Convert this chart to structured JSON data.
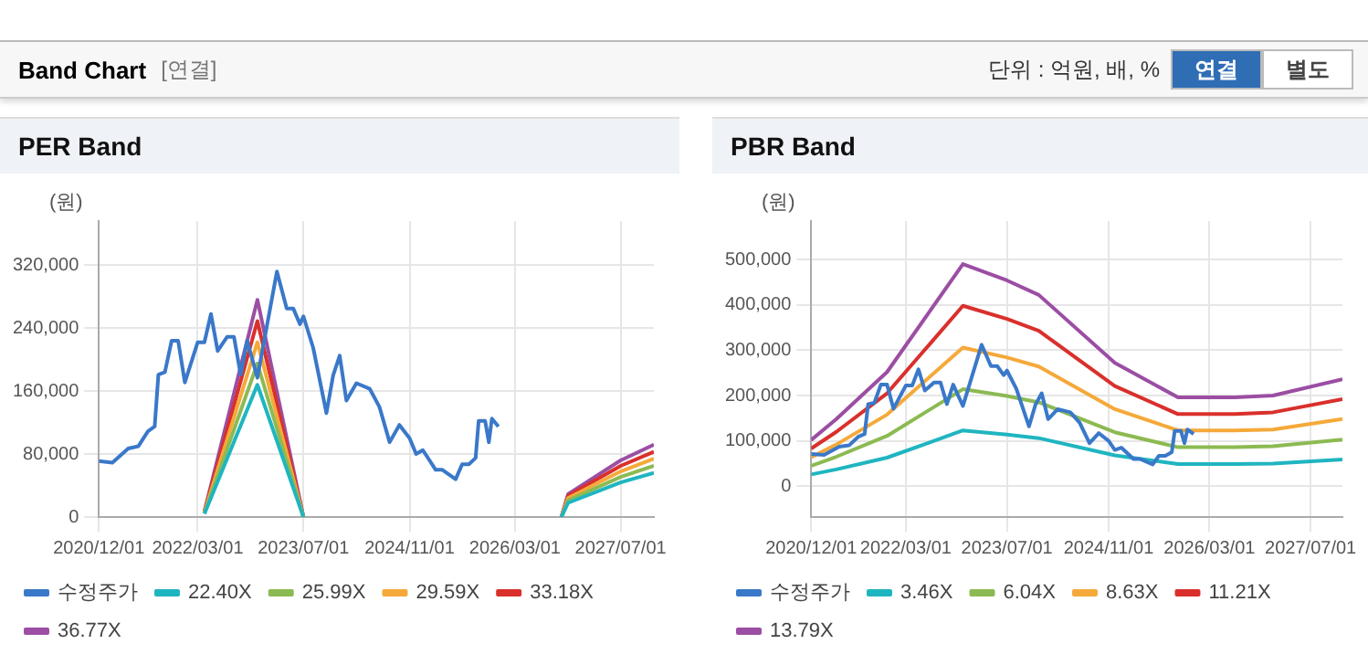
{
  "chart_data": [
    {
      "type": "other",
      "title": "Band Chart",
      "annotations": [
        "[연결]",
        "단위 : 억원, 배, %",
        "연결",
        "별도"
      ]
    },
    {
      "type": "line",
      "title": "PER Band",
      "ylabel": "(원)",
      "grid": true,
      "legend": "bottom",
      "marker": "none",
      "line_style": "solid",
      "xlim": [
        "2020-12-01",
        "2027-12-01"
      ],
      "xticks": [
        {
          "value": "2020-12-01",
          "label": "2020/12/01"
        },
        {
          "value": "2022-03-01",
          "label": "2022/03/01"
        },
        {
          "value": "2023-07-01",
          "label": "2023/07/01"
        },
        {
          "value": "2024-11-01",
          "label": "2024/11/01"
        },
        {
          "value": "2026-03-01",
          "label": "2026/03/01"
        },
        {
          "value": "2027-07-01",
          "label": "2027/07/01"
        }
      ],
      "ylim": [
        0,
        376000
      ],
      "yticks": [
        0,
        {
          "value": 80000,
          "label": "80,000"
        },
        {
          "value": 160000,
          "label": "160,000"
        },
        {
          "value": 240000,
          "label": "240,000"
        },
        {
          "value": 320000,
          "label": "320,000"
        }
      ],
      "series": [
        {
          "name": "수정주가",
          "color": "#3a78c9",
          "x": [
            "2020-12-01",
            "2021-02-01",
            "2021-04-15",
            "2021-06-01",
            "2021-07-15",
            "2021-08-15",
            "2021-09-01",
            "2021-10-01",
            "2021-11-01",
            "2021-12-01",
            "2022-01-01",
            "2022-03-01",
            "2022-04-01",
            "2022-05-01",
            "2022-06-01",
            "2022-07-15",
            "2022-08-15",
            "2022-09-15",
            "2022-10-15",
            "2022-12-01",
            "2023-03-01",
            "2023-04-15",
            "2023-05-15",
            "2023-06-15",
            "2023-07-01",
            "2023-08-15",
            "2023-10-15",
            "2023-11-15",
            "2023-12-15",
            "2024-01-15",
            "2024-03-01",
            "2024-05-01",
            "2024-06-15",
            "2024-08-01",
            "2024-09-15",
            "2024-11-01",
            "2024-12-01",
            "2025-01-01",
            "2025-03-01",
            "2025-04-01",
            "2025-06-01",
            "2025-07-01",
            "2025-08-01",
            "2025-09-01",
            "2025-09-15",
            "2025-10-15",
            "2025-11-01",
            "2025-11-15",
            "2025-12-15"
          ],
          "values": [
            71000,
            69000,
            87000,
            90000,
            109000,
            115000,
            181000,
            184000,
            224000,
            224000,
            171000,
            222000,
            222000,
            258000,
            211000,
            229000,
            229000,
            181000,
            224000,
            177000,
            312000,
            265000,
            265000,
            245000,
            255000,
            215000,
            132000,
            180000,
            205000,
            148000,
            170000,
            163000,
            140000,
            95000,
            117000,
            100000,
            80000,
            85000,
            60000,
            60000,
            48000,
            67000,
            67000,
            75000,
            122000,
            122000,
            95000,
            125000,
            115000
          ]
        },
        {
          "name": "22.40X",
          "color": "#1fb5c0",
          "x": [
            "2022-04-01",
            "2022-12-01",
            "2023-07-01",
            "2025-01-01",
            "2026-10-01",
            "2026-11-01",
            "2027-07-01",
            "2027-12-01"
          ],
          "values": [
            4000,
            168000,
            0,
            null,
            0,
            18000,
            44000,
            56000
          ]
        },
        {
          "name": "25.99X",
          "color": "#8cba52",
          "x": [
            "2022-04-01",
            "2022-12-01",
            "2023-07-01",
            "2025-01-01",
            "2026-10-01",
            "2026-11-01",
            "2027-07-01",
            "2027-12-01"
          ],
          "values": [
            5000,
            195000,
            0,
            null,
            0,
            21000,
            51000,
            65000
          ]
        },
        {
          "name": "29.59X",
          "color": "#f5a93a",
          "x": [
            "2022-04-01",
            "2022-12-01",
            "2023-07-01",
            "2025-01-01",
            "2026-10-01",
            "2026-11-01",
            "2027-07-01",
            "2027-12-01"
          ],
          "values": [
            6000,
            222000,
            0,
            null,
            0,
            24000,
            58000,
            74000
          ]
        },
        {
          "name": "33.18X",
          "color": "#d9302c",
          "x": [
            "2022-04-01",
            "2022-12-01",
            "2023-07-01",
            "2025-01-01",
            "2026-10-01",
            "2026-11-01",
            "2027-07-01",
            "2027-12-01"
          ],
          "values": [
            7000,
            249000,
            0,
            null,
            0,
            27000,
            65000,
            83000
          ]
        },
        {
          "name": "36.77X",
          "color": "#9b4ea3",
          "x": [
            "2022-04-01",
            "2022-12-01",
            "2023-07-01",
            "2025-01-01",
            "2026-10-01",
            "2026-11-01",
            "2027-07-01",
            "2027-12-01"
          ],
          "values": [
            7000,
            276000,
            0,
            null,
            0,
            29000,
            72000,
            92000
          ]
        }
      ]
    },
    {
      "type": "line",
      "title": "PBR Band",
      "ylabel": "(원)",
      "grid": true,
      "legend": "bottom",
      "marker": "none",
      "line_style": "solid",
      "xlim": [
        "2020-12-01",
        "2027-12-01"
      ],
      "xticks": [
        {
          "value": "2020-12-01",
          "label": "2020/12/01"
        },
        {
          "value": "2022-03-01",
          "label": "2022/03/01"
        },
        {
          "value": "2023-07-01",
          "label": "2023/07/01"
        },
        {
          "value": "2024-11-01",
          "label": "2024/11/01"
        },
        {
          "value": "2026-03-01",
          "label": "2026/03/01"
        },
        {
          "value": "2027-07-01",
          "label": "2027/07/01"
        }
      ],
      "ylim": [
        -68000,
        585000
      ],
      "yticks": [
        0,
        {
          "value": 100000,
          "label": "100,000"
        },
        {
          "value": 200000,
          "label": "200,000"
        },
        {
          "value": 300000,
          "label": "300,000"
        },
        {
          "value": 400000,
          "label": "400,000"
        },
        {
          "value": 500000,
          "label": "500,000"
        }
      ],
      "series": [
        {
          "name": "수정주가",
          "color": "#3a78c9",
          "x": [
            "2020-12-01",
            "2021-02-01",
            "2021-04-15",
            "2021-06-01",
            "2021-07-15",
            "2021-08-15",
            "2021-09-01",
            "2021-10-01",
            "2021-11-01",
            "2021-12-01",
            "2022-01-01",
            "2022-03-01",
            "2022-04-01",
            "2022-05-01",
            "2022-06-01",
            "2022-07-15",
            "2022-08-15",
            "2022-09-15",
            "2022-10-15",
            "2022-12-01",
            "2023-03-01",
            "2023-04-15",
            "2023-05-15",
            "2023-06-15",
            "2023-07-01",
            "2023-08-15",
            "2023-10-15",
            "2023-11-15",
            "2023-12-15",
            "2024-01-15",
            "2024-03-01",
            "2024-05-01",
            "2024-06-15",
            "2024-08-01",
            "2024-09-15",
            "2024-11-01",
            "2024-12-01",
            "2025-01-01",
            "2025-03-01",
            "2025-04-01",
            "2025-06-01",
            "2025-07-01",
            "2025-08-01",
            "2025-09-01",
            "2025-09-15",
            "2025-10-15",
            "2025-11-01",
            "2025-11-15",
            "2025-12-15"
          ],
          "values": [
            71000,
            69000,
            87000,
            90000,
            109000,
            115000,
            181000,
            184000,
            224000,
            224000,
            171000,
            222000,
            222000,
            258000,
            211000,
            229000,
            229000,
            181000,
            224000,
            177000,
            312000,
            265000,
            265000,
            245000,
            255000,
            215000,
            132000,
            180000,
            205000,
            148000,
            170000,
            163000,
            140000,
            95000,
            117000,
            100000,
            80000,
            85000,
            60000,
            60000,
            48000,
            67000,
            67000,
            75000,
            122000,
            122000,
            95000,
            125000,
            115000
          ]
        },
        {
          "name": "3.46X",
          "color": "#1fb5c0",
          "x": [
            "2020-12-01",
            "2021-04-01",
            "2021-12-01",
            "2022-12-01",
            "2023-07-01",
            "2023-12-01",
            "2024-12-01",
            "2025-10-01",
            "2026-07-01",
            "2027-01-01",
            "2027-12-01"
          ],
          "values": [
            26000,
            37000,
            63000,
            123000,
            114000,
            106000,
            68000,
            49000,
            49000,
            50000,
            59000
          ]
        },
        {
          "name": "6.04X",
          "color": "#8cba52",
          "x": [
            "2020-12-01",
            "2021-04-01",
            "2021-12-01",
            "2022-12-01",
            "2023-07-01",
            "2023-12-01",
            "2024-12-01",
            "2025-10-01",
            "2026-07-01",
            "2027-01-01",
            "2027-12-01"
          ],
          "values": [
            45000,
            65000,
            111000,
            214000,
            199000,
            185000,
            119000,
            86000,
            86000,
            88000,
            103000
          ]
        },
        {
          "name": "8.63X",
          "color": "#f5a93a",
          "x": [
            "2020-12-01",
            "2021-04-01",
            "2021-12-01",
            "2022-12-01",
            "2023-07-01",
            "2023-12-01",
            "2024-12-01",
            "2025-10-01",
            "2026-07-01",
            "2027-01-01",
            "2027-12-01"
          ],
          "values": [
            64000,
            92000,
            158000,
            306000,
            284000,
            264000,
            170000,
            123000,
            123000,
            125000,
            148000
          ]
        },
        {
          "name": "11.21X",
          "color": "#d9302c",
          "x": [
            "2020-12-01",
            "2021-04-01",
            "2021-12-01",
            "2022-12-01",
            "2023-07-01",
            "2023-12-01",
            "2024-12-01",
            "2025-10-01",
            "2026-07-01",
            "2027-01-01",
            "2027-12-01"
          ],
          "values": [
            83000,
            120000,
            205000,
            398000,
            369000,
            343000,
            221000,
            159000,
            159000,
            163000,
            192000
          ]
        },
        {
          "name": "13.79X",
          "color": "#9b4ea3",
          "x": [
            "2020-12-01",
            "2021-04-01",
            "2021-12-01",
            "2022-12-01",
            "2023-07-01",
            "2023-12-01",
            "2024-12-01",
            "2025-10-01",
            "2026-07-01",
            "2027-01-01",
            "2027-12-01"
          ],
          "values": [
            102000,
            148000,
            252000,
            490000,
            454000,
            422000,
            272000,
            196000,
            196000,
            200000,
            236000
          ]
        }
      ]
    }
  ]
}
